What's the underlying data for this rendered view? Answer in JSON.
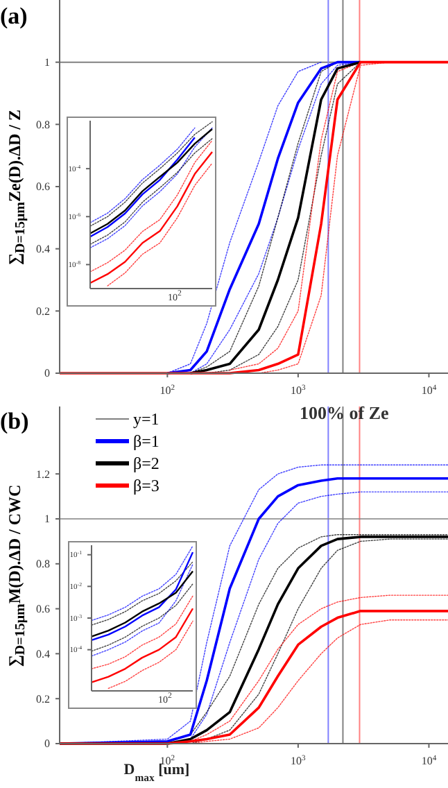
{
  "chart_data": [
    {
      "type": "line",
      "title": "(a)",
      "ylabel": "∑$_{D=15μm}$Ze(D).ΔD / Z",
      "log": "x",
      "marker": "none",
      "line_style": "solid",
      "legend": false,
      "x": [
        15,
        100,
        150,
        200,
        300,
        500,
        700,
        1000,
        1500,
        2000,
        3000,
        5000,
        14000
      ],
      "xlim": [
        15,
        14000
      ],
      "xticks": [
        {
          "value": 100,
          "label": "10$^{2}$"
        },
        {
          "value": 1000,
          "label": "10$^{3}$"
        },
        {
          "value": 10000,
          "label": "10$^{4}$"
        }
      ],
      "ylim": [
        0,
        1.2
      ],
      "yticks": [
        0,
        0.2,
        0.4,
        0.6,
        0.8,
        1
      ],
      "series": [
        {
          "color": "#0000ff",
          "line_style": "dotted",
          "values": [
            null,
            0,
            0.03,
            0.16,
            0.42,
            0.68,
            0.86,
            0.97,
            1,
            null,
            null,
            null,
            null
          ]
        },
        {
          "color": "#0000ff",
          "line_style": "dotted",
          "values": [
            null,
            null,
            0,
            0.03,
            0.14,
            0.32,
            0.5,
            0.72,
            0.93,
            0.99,
            1,
            null,
            null
          ]
        },
        {
          "color": "#000000",
          "line_style": "dotted",
          "values": [
            null,
            null,
            0,
            0.02,
            0.07,
            0.28,
            0.5,
            0.74,
            0.97,
            1,
            1,
            null,
            null
          ]
        },
        {
          "color": "#000000",
          "line_style": "dotted",
          "values": [
            null,
            null,
            null,
            0,
            0.01,
            0.06,
            0.15,
            0.3,
            0.7,
            0.93,
            1,
            null,
            null
          ]
        },
        {
          "color": "#ff0000",
          "line_style": "dotted",
          "values": [
            null,
            null,
            null,
            null,
            0.01,
            0.03,
            0.08,
            0.2,
            0.75,
            0.97,
            1,
            null,
            null
          ]
        },
        {
          "color": "#ff0000",
          "line_style": "dotted",
          "values": [
            null,
            null,
            null,
            null,
            null,
            0,
            0.01,
            0.03,
            0.25,
            0.7,
            0.99,
            1,
            null
          ]
        },
        {
          "color": "#0000ff",
          "values": [
            null,
            0,
            0.01,
            0.07,
            0.27,
            0.48,
            0.69,
            0.87,
            0.98,
            1,
            1,
            null,
            null
          ]
        },
        {
          "color": "#000000",
          "values": [
            null,
            null,
            0,
            0.01,
            0.03,
            0.14,
            0.3,
            0.5,
            0.88,
            0.98,
            1,
            null,
            null
          ]
        },
        {
          "color": "#ff0000",
          "values": [
            0,
            0,
            0,
            0,
            0,
            0.01,
            0.03,
            0.06,
            0.48,
            0.88,
            1,
            1,
            1
          ]
        }
      ],
      "ref_lines": [
        {
          "axis": "y",
          "value": 1,
          "color": "#808080"
        },
        {
          "axis": "x",
          "value": 1700,
          "color": "#8080ff"
        },
        {
          "axis": "x",
          "value": 2200,
          "color": "#808080"
        },
        {
          "axis": "x",
          "value": 2950,
          "color": "#ff8080"
        }
      ]
    },
    {
      "type": "line",
      "log": "y",
      "marker": "none",
      "line_style": "solid",
      "legend": false,
      "tick_labels": "y",
      "categories": [
        null,
        null,
        null,
        null,
        null,
        null,
        null,
        null
      ],
      "ylim": [
        1e-09,
        0.01
      ],
      "yticks": [
        {
          "value": 0.0001,
          "label": "10$^{-4}$"
        },
        {
          "value": 1e-06,
          "label": "10$^{-6}$"
        },
        {
          "value": 1e-08,
          "label": "10$^{-8}$"
        }
      ],
      "annotations": [
        "10$^{2}$"
      ],
      "series": [
        {
          "color": "#0000ff",
          "line_style": "dotted",
          "values": [
            5.6e-07,
            1.4e-06,
            5.6e-06,
            3.5e-05,
            0.00014,
            0.00065,
            0.005,
            null
          ]
        },
        {
          "color": "#0000ff",
          "line_style": "dotted",
          "values": [
            5e-08,
            1.2e-07,
            4.2e-07,
            2.8e-06,
            1.1e-05,
            6e-05,
            0.0008,
            0.005
          ]
        },
        {
          "color": "#000000",
          "line_style": "dotted",
          "values": [
            4e-07,
            1e-06,
            4e-06,
            2.5e-05,
            0.0001,
            0.00045,
            0.0027,
            0.009
          ]
        },
        {
          "color": "#000000",
          "line_style": "dotted",
          "values": [
            7e-08,
            1.7e-07,
            6e-07,
            4e-06,
            1.6e-05,
            7e-05,
            0.00045,
            0.0018
          ]
        },
        {
          "color": "#ff0000",
          "line_style": "dotted",
          "values": [
            5e-09,
            1.2e-08,
            4e-08,
            2.4e-07,
            7.5e-07,
            8e-06,
            0.00018,
            0.0015
          ]
        },
        {
          "color": "#ff0000",
          "line_style": "dotted",
          "values": [
            null,
            1.3e-09,
            4.5e-09,
            2.7e-08,
            8e-08,
            9e-07,
            2e-05,
            0.00017
          ]
        },
        {
          "color": "#0000ff",
          "values": [
            1.45e-07,
            3.7e-07,
            1.35e-06,
            8.5e-06,
            3.4e-05,
            0.00024,
            0.002,
            null
          ]
        },
        {
          "color": "#000000",
          "values": [
            2e-07,
            5e-07,
            1.8e-06,
            1.15e-05,
            4.6e-05,
            0.00018,
            0.0011,
            0.0045
          ]
        },
        {
          "color": "#ff0000",
          "values": [
            1.7e-09,
            4e-09,
            1.3e-08,
            8e-08,
            2.5e-07,
            2.7e-06,
            6e-05,
            0.0005
          ]
        }
      ]
    },
    {
      "type": "line",
      "title": "(b)",
      "xlabel": "D$_{max}$ [um]",
      "ylabel": "∑$_{D=15μm}$M(D).ΔD / CWC",
      "log": "x",
      "marker": "none",
      "line_style": "solid",
      "legend": "top left",
      "x": [
        15,
        100,
        150,
        200,
        300,
        500,
        700,
        1000,
        1500,
        2000,
        3000,
        5000,
        14000
      ],
      "xlim": [
        15,
        14000
      ],
      "xticks": [
        {
          "value": 100,
          "label": "10$^{2}$"
        },
        {
          "value": 1000,
          "label": "10$^{3}$"
        },
        {
          "value": 10000,
          "label": "10$^{4}$"
        }
      ],
      "ylim": [
        0,
        1.5
      ],
      "yticks": [
        0,
        0.2,
        0.4,
        0.6,
        0.8,
        1,
        1.2
      ],
      "series": [
        {
          "name": "y=1",
          "color": "#808080",
          "values": [
            1,
            1,
            1,
            1,
            1,
            1,
            1,
            1,
            1,
            1,
            1,
            1,
            1
          ]
        },
        {
          "color": "#0000ff",
          "line_style": "dotted",
          "values": [
            0,
            0.02,
            0.1,
            0.45,
            0.88,
            1.13,
            1.2,
            1.23,
            1.24,
            1.24,
            1.24,
            1.24,
            1.24
          ]
        },
        {
          "color": "#0000ff",
          "line_style": "dotted",
          "values": [
            0,
            0,
            0.02,
            0.13,
            0.45,
            0.82,
            0.98,
            1.07,
            1.1,
            1.11,
            1.12,
            1.12,
            1.12
          ]
        },
        {
          "color": "#000000",
          "line_style": "dotted",
          "values": [
            0,
            0.01,
            0.04,
            0.14,
            0.3,
            0.62,
            0.78,
            0.87,
            0.92,
            0.93,
            0.93,
            0.93,
            0.93
          ]
        },
        {
          "color": "#000000",
          "line_style": "dotted",
          "values": [
            0,
            0,
            0,
            0.02,
            0.06,
            0.22,
            0.4,
            0.6,
            0.78,
            0.86,
            0.9,
            0.91,
            0.91
          ]
        },
        {
          "color": "#ff0000",
          "line_style": "dotted",
          "values": [
            0,
            0,
            0.01,
            0.04,
            0.1,
            0.28,
            0.42,
            0.53,
            0.6,
            0.63,
            0.65,
            0.66,
            0.66
          ]
        },
        {
          "color": "#ff0000",
          "line_style": "dotted",
          "values": [
            0,
            0,
            0,
            0.01,
            0.02,
            0.07,
            0.16,
            0.28,
            0.4,
            0.47,
            0.53,
            0.55,
            0.55
          ]
        },
        {
          "name": "β=1",
          "color": "#0000ff",
          "values": [
            0,
            0.01,
            0.04,
            0.28,
            0.69,
            1.0,
            1.1,
            1.15,
            1.17,
            1.18,
            1.18,
            1.18,
            1.18
          ]
        },
        {
          "name": "β=2",
          "color": "#000000",
          "values": [
            0,
            0,
            0.02,
            0.06,
            0.14,
            0.42,
            0.62,
            0.78,
            0.88,
            0.91,
            0.92,
            0.92,
            0.92
          ]
        },
        {
          "name": "β=3",
          "color": "#ff0000",
          "values": [
            0,
            0,
            0.01,
            0.02,
            0.04,
            0.16,
            0.3,
            0.44,
            0.52,
            0.56,
            0.59,
            0.59,
            0.59
          ]
        }
      ],
      "ref_lines": [
        {
          "axis": "x",
          "value": 1700,
          "color": "#8080ff"
        },
        {
          "axis": "x",
          "value": 2200,
          "color": "#808080"
        },
        {
          "axis": "x",
          "value": 2950,
          "color": "#ff8080"
        }
      ],
      "annotations": [
        "100% of Ze"
      ]
    },
    {
      "type": "line",
      "log": "y",
      "marker": "none",
      "line_style": "solid",
      "legend": false,
      "tick_labels": "y",
      "categories": [
        null,
        null,
        null,
        null,
        null,
        null,
        null
      ],
      "ylim": [
        5e-06,
        0.2
      ],
      "yticks": [
        {
          "value": 0.1,
          "label": "10$^{-1}$"
        },
        {
          "value": 0.01,
          "label": "10$^{-2}$"
        },
        {
          "value": 0.001,
          "label": "10$^{-3}$"
        },
        {
          "value": 0.0001,
          "label": "10$^{-4}$"
        }
      ],
      "annotations": [
        "10$^{2}$"
      ],
      "series": [
        {
          "color": "#0000ff",
          "line_style": "dotted",
          "values": [
            0.00084,
            0.00126,
            0.0022,
            0.0049,
            0.0084,
            0.024,
            0.19
          ]
        },
        {
          "color": "#0000ff",
          "line_style": "dotted",
          "values": [
            6.3e-05,
            0.0001,
            0.000175,
            0.00039,
            0.0007,
            0.0035,
            0.05
          ]
        },
        {
          "color": "#000000",
          "line_style": "dotted",
          "values": [
            0.0006,
            0.0009,
            0.0016,
            0.0035,
            0.006,
            0.015,
            0.06
          ]
        },
        {
          "color": "#000000",
          "line_style": "dotted",
          "values": [
            9e-05,
            0.00014,
            0.00025,
            0.00055,
            0.001,
            0.0025,
            0.012
          ]
        },
        {
          "color": "#ff0000",
          "line_style": "dotted",
          "values": [
            2.5e-05,
            3.5e-05,
            6e-05,
            0.00014,
            0.00025,
            0.00065,
            0.005
          ]
        },
        {
          "color": "#ff0000",
          "line_style": "dotted",
          "values": [
            null,
            6e-06,
            1e-05,
            2.2e-05,
            4e-05,
            0.0001,
            0.0008
          ]
        },
        {
          "color": "#0000ff",
          "values": [
            0.0002,
            0.0003,
            0.00054,
            0.0012,
            0.0022,
            0.008,
            0.12
          ]
        },
        {
          "color": "#000000",
          "values": [
            0.00026,
            0.0004,
            0.00072,
            0.0016,
            0.0029,
            0.0063,
            0.03
          ]
        },
        {
          "color": "#ff0000",
          "values": [
            9.3e-06,
            1.4e-05,
            2.5e-05,
            5.6e-05,
            0.0001,
            0.00025,
            0.002
          ]
        }
      ]
    }
  ]
}
